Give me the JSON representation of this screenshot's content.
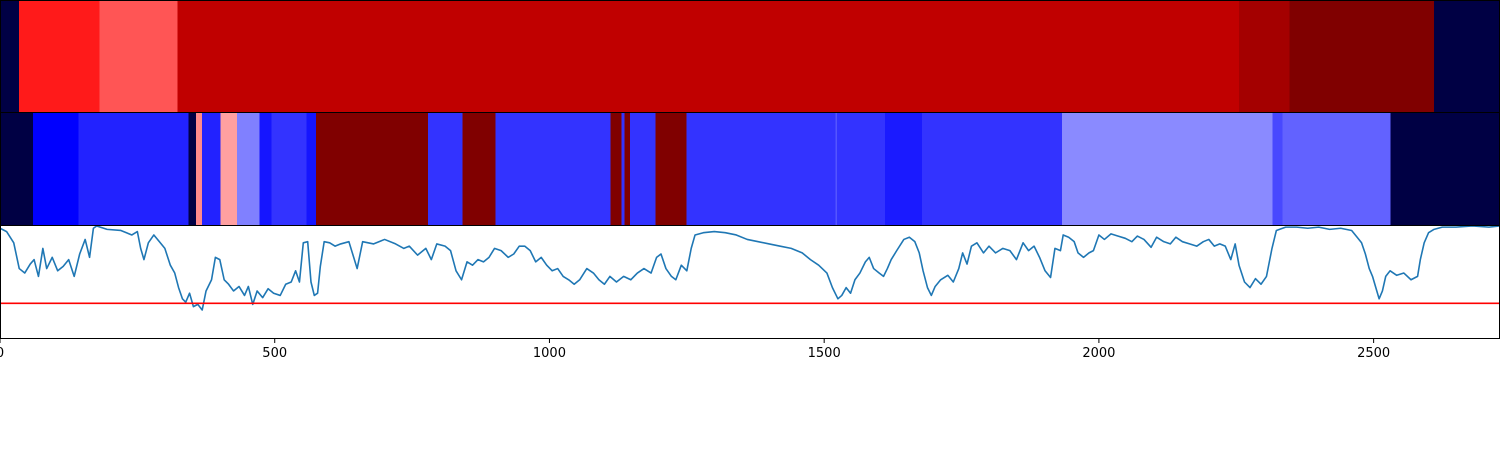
{
  "chart_data": {
    "type": "heatmap",
    "x_ticks": [
      0,
      500,
      1000,
      1500,
      2000,
      2500
    ],
    "xlim": [
      0,
      2730
    ],
    "rows": [
      {
        "segments": [
          {
            "start": 0,
            "end": 35,
            "color": "#000044"
          },
          {
            "start": 35,
            "end": 181,
            "color": "#ff1a1a"
          },
          {
            "start": 181,
            "end": 323,
            "color": "#ff5555"
          },
          {
            "start": 323,
            "end": 2255,
            "color": "#c00000"
          },
          {
            "start": 2255,
            "end": 2347,
            "color": "#a40000"
          },
          {
            "start": 2347,
            "end": 2610,
            "color": "#800000"
          },
          {
            "start": 2610,
            "end": 2730,
            "color": "#000044"
          }
        ]
      },
      {
        "segments": [
          {
            "start": 0,
            "end": 60,
            "color": "#000044"
          },
          {
            "start": 60,
            "end": 143,
            "color": "#0000ff"
          },
          {
            "start": 143,
            "end": 343,
            "color": "#2222ff"
          },
          {
            "start": 343,
            "end": 357,
            "color": "#000044"
          },
          {
            "start": 357,
            "end": 368,
            "color": "#ff8a8a"
          },
          {
            "start": 368,
            "end": 401,
            "color": "#2222ff"
          },
          {
            "start": 401,
            "end": 431,
            "color": "#ffa0a0"
          },
          {
            "start": 431,
            "end": 472,
            "color": "#8080ff"
          },
          {
            "start": 472,
            "end": 494,
            "color": "#1515ff"
          },
          {
            "start": 494,
            "end": 558,
            "color": "#3333ff"
          },
          {
            "start": 558,
            "end": 575,
            "color": "#1515ff"
          },
          {
            "start": 575,
            "end": 779,
            "color": "#800000"
          },
          {
            "start": 779,
            "end": 842,
            "color": "#3333ff"
          },
          {
            "start": 842,
            "end": 902,
            "color": "#800000"
          },
          {
            "start": 902,
            "end": 1111,
            "color": "#3333ff"
          },
          {
            "start": 1111,
            "end": 1131,
            "color": "#800000"
          },
          {
            "start": 1131,
            "end": 1137,
            "color": "#3333ff"
          },
          {
            "start": 1137,
            "end": 1147,
            "color": "#800000"
          },
          {
            "start": 1147,
            "end": 1193,
            "color": "#3333ff"
          },
          {
            "start": 1193,
            "end": 1249,
            "color": "#800000"
          },
          {
            "start": 1249,
            "end": 1521,
            "color": "#3333ff"
          },
          {
            "start": 1521,
            "end": 1523,
            "color": "#5555ff"
          },
          {
            "start": 1523,
            "end": 1611,
            "color": "#3333ff"
          },
          {
            "start": 1611,
            "end": 1678,
            "color": "#1a1aff"
          },
          {
            "start": 1678,
            "end": 1933,
            "color": "#3333ff"
          },
          {
            "start": 1933,
            "end": 2316,
            "color": "#8a8aff"
          },
          {
            "start": 2316,
            "end": 2334,
            "color": "#4848ff"
          },
          {
            "start": 2334,
            "end": 2531,
            "color": "#6262ff"
          },
          {
            "start": 2531,
            "end": 2730,
            "color": "#000044"
          }
        ]
      }
    ],
    "line": {
      "color": "#1f77b4",
      "ylim": [
        0,
        1
      ],
      "threshold": 0.31,
      "threshold_color": "#ff0000",
      "points": [
        [
          0,
          0.98
        ],
        [
          12,
          0.95
        ],
        [
          25,
          0.85
        ],
        [
          35,
          0.62
        ],
        [
          45,
          0.58
        ],
        [
          55,
          0.66
        ],
        [
          62,
          0.7
        ],
        [
          70,
          0.55
        ],
        [
          78,
          0.8
        ],
        [
          85,
          0.62
        ],
        [
          95,
          0.72
        ],
        [
          105,
          0.6
        ],
        [
          115,
          0.64
        ],
        [
          125,
          0.7
        ],
        [
          135,
          0.55
        ],
        [
          145,
          0.75
        ],
        [
          155,
          0.88
        ],
        [
          163,
          0.72
        ],
        [
          170,
          0.98
        ],
        [
          176,
          1.0
        ],
        [
          195,
          0.97
        ],
        [
          220,
          0.96
        ],
        [
          240,
          0.92
        ],
        [
          250,
          0.95
        ],
        [
          256,
          0.8
        ],
        [
          262,
          0.7
        ],
        [
          270,
          0.85
        ],
        [
          280,
          0.92
        ],
        [
          290,
          0.86
        ],
        [
          300,
          0.8
        ],
        [
          310,
          0.65
        ],
        [
          318,
          0.58
        ],
        [
          325,
          0.45
        ],
        [
          332,
          0.35
        ],
        [
          338,
          0.32
        ],
        [
          345,
          0.4
        ],
        [
          352,
          0.28
        ],
        [
          360,
          0.3
        ],
        [
          368,
          0.25
        ],
        [
          375,
          0.42
        ],
        [
          385,
          0.52
        ],
        [
          392,
          0.72
        ],
        [
          400,
          0.7
        ],
        [
          408,
          0.52
        ],
        [
          416,
          0.48
        ],
        [
          425,
          0.42
        ],
        [
          435,
          0.46
        ],
        [
          445,
          0.38
        ],
        [
          452,
          0.46
        ],
        [
          460,
          0.3
        ],
        [
          468,
          0.42
        ],
        [
          478,
          0.36
        ],
        [
          488,
          0.44
        ],
        [
          498,
          0.4
        ],
        [
          510,
          0.38
        ],
        [
          520,
          0.48
        ],
        [
          530,
          0.5
        ],
        [
          538,
          0.6
        ],
        [
          545,
          0.5
        ],
        [
          552,
          0.85
        ],
        [
          560,
          0.86
        ],
        [
          566,
          0.5
        ],
        [
          572,
          0.38
        ],
        [
          578,
          0.4
        ],
        [
          583,
          0.64
        ],
        [
          590,
          0.86
        ],
        [
          600,
          0.85
        ],
        [
          610,
          0.82
        ],
        [
          620,
          0.84
        ],
        [
          635,
          0.86
        ],
        [
          650,
          0.62
        ],
        [
          660,
          0.86
        ],
        [
          680,
          0.84
        ],
        [
          700,
          0.88
        ],
        [
          720,
          0.84
        ],
        [
          735,
          0.8
        ],
        [
          745,
          0.82
        ],
        [
          760,
          0.74
        ],
        [
          775,
          0.8
        ],
        [
          785,
          0.7
        ],
        [
          795,
          0.84
        ],
        [
          810,
          0.82
        ],
        [
          820,
          0.78
        ],
        [
          830,
          0.6
        ],
        [
          840,
          0.52
        ],
        [
          850,
          0.68
        ],
        [
          860,
          0.65
        ],
        [
          870,
          0.7
        ],
        [
          880,
          0.68
        ],
        [
          890,
          0.72
        ],
        [
          900,
          0.8
        ],
        [
          912,
          0.78
        ],
        [
          925,
          0.72
        ],
        [
          935,
          0.75
        ],
        [
          945,
          0.82
        ],
        [
          955,
          0.82
        ],
        [
          965,
          0.78
        ],
        [
          975,
          0.68
        ],
        [
          985,
          0.72
        ],
        [
          995,
          0.65
        ],
        [
          1005,
          0.6
        ],
        [
          1015,
          0.62
        ],
        [
          1025,
          0.55
        ],
        [
          1035,
          0.52
        ],
        [
          1045,
          0.48
        ],
        [
          1055,
          0.52
        ],
        [
          1068,
          0.62
        ],
        [
          1080,
          0.58
        ],
        [
          1090,
          0.52
        ],
        [
          1100,
          0.48
        ],
        [
          1110,
          0.55
        ],
        [
          1122,
          0.5
        ],
        [
          1135,
          0.55
        ],
        [
          1148,
          0.52
        ],
        [
          1160,
          0.58
        ],
        [
          1172,
          0.62
        ],
        [
          1185,
          0.58
        ],
        [
          1195,
          0.72
        ],
        [
          1203,
          0.75
        ],
        [
          1212,
          0.62
        ],
        [
          1222,
          0.55
        ],
        [
          1230,
          0.52
        ],
        [
          1240,
          0.65
        ],
        [
          1250,
          0.6
        ],
        [
          1258,
          0.8
        ],
        [
          1265,
          0.92
        ],
        [
          1280,
          0.94
        ],
        [
          1300,
          0.95
        ],
        [
          1320,
          0.94
        ],
        [
          1340,
          0.92
        ],
        [
          1360,
          0.88
        ],
        [
          1380,
          0.86
        ],
        [
          1400,
          0.84
        ],
        [
          1420,
          0.82
        ],
        [
          1440,
          0.8
        ],
        [
          1460,
          0.76
        ],
        [
          1475,
          0.7
        ],
        [
          1490,
          0.65
        ],
        [
          1505,
          0.58
        ],
        [
          1515,
          0.45
        ],
        [
          1525,
          0.35
        ],
        [
          1532,
          0.38
        ],
        [
          1540,
          0.45
        ],
        [
          1548,
          0.4
        ],
        [
          1556,
          0.52
        ],
        [
          1565,
          0.58
        ],
        [
          1575,
          0.68
        ],
        [
          1582,
          0.72
        ],
        [
          1590,
          0.62
        ],
        [
          1600,
          0.58
        ],
        [
          1608,
          0.55
        ],
        [
          1615,
          0.62
        ],
        [
          1622,
          0.7
        ],
        [
          1632,
          0.78
        ],
        [
          1645,
          0.88
        ],
        [
          1655,
          0.9
        ],
        [
          1665,
          0.86
        ],
        [
          1673,
          0.76
        ],
        [
          1680,
          0.6
        ],
        [
          1688,
          0.45
        ],
        [
          1695,
          0.38
        ],
        [
          1702,
          0.46
        ],
        [
          1712,
          0.52
        ],
        [
          1725,
          0.56
        ],
        [
          1735,
          0.5
        ],
        [
          1745,
          0.62
        ],
        [
          1752,
          0.76
        ],
        [
          1760,
          0.66
        ],
        [
          1768,
          0.82
        ],
        [
          1778,
          0.85
        ],
        [
          1790,
          0.76
        ],
        [
          1800,
          0.82
        ],
        [
          1812,
          0.76
        ],
        [
          1825,
          0.8
        ],
        [
          1838,
          0.78
        ],
        [
          1850,
          0.7
        ],
        [
          1862,
          0.85
        ],
        [
          1872,
          0.78
        ],
        [
          1882,
          0.82
        ],
        [
          1892,
          0.72
        ],
        [
          1902,
          0.6
        ],
        [
          1912,
          0.54
        ],
        [
          1920,
          0.8
        ],
        [
          1930,
          0.78
        ],
        [
          1935,
          0.92
        ],
        [
          1945,
          0.9
        ],
        [
          1955,
          0.86
        ],
        [
          1962,
          0.76
        ],
        [
          1972,
          0.72
        ],
        [
          1982,
          0.76
        ],
        [
          1990,
          0.78
        ],
        [
          2000,
          0.92
        ],
        [
          2010,
          0.88
        ],
        [
          2022,
          0.93
        ],
        [
          2035,
          0.91
        ],
        [
          2048,
          0.89
        ],
        [
          2060,
          0.86
        ],
        [
          2070,
          0.91
        ],
        [
          2082,
          0.88
        ],
        [
          2095,
          0.81
        ],
        [
          2105,
          0.9
        ],
        [
          2118,
          0.86
        ],
        [
          2130,
          0.84
        ],
        [
          2140,
          0.9
        ],
        [
          2152,
          0.86
        ],
        [
          2165,
          0.84
        ],
        [
          2178,
          0.82
        ],
        [
          2190,
          0.86
        ],
        [
          2200,
          0.88
        ],
        [
          2210,
          0.82
        ],
        [
          2220,
          0.84
        ],
        [
          2230,
          0.82
        ],
        [
          2240,
          0.7
        ],
        [
          2248,
          0.84
        ],
        [
          2255,
          0.65
        ],
        [
          2265,
          0.5
        ],
        [
          2275,
          0.45
        ],
        [
          2285,
          0.53
        ],
        [
          2295,
          0.48
        ],
        [
          2305,
          0.55
        ],
        [
          2315,
          0.8
        ],
        [
          2323,
          0.96
        ],
        [
          2340,
          0.99
        ],
        [
          2360,
          0.99
        ],
        [
          2380,
          0.98
        ],
        [
          2400,
          0.99
        ],
        [
          2420,
          0.97
        ],
        [
          2440,
          0.98
        ],
        [
          2460,
          0.96
        ],
        [
          2470,
          0.9
        ],
        [
          2478,
          0.85
        ],
        [
          2485,
          0.75
        ],
        [
          2492,
          0.62
        ],
        [
          2498,
          0.55
        ],
        [
          2504,
          0.45
        ],
        [
          2510,
          0.35
        ],
        [
          2516,
          0.42
        ],
        [
          2522,
          0.55
        ],
        [
          2530,
          0.6
        ],
        [
          2542,
          0.56
        ],
        [
          2555,
          0.58
        ],
        [
          2568,
          0.52
        ],
        [
          2580,
          0.55
        ],
        [
          2585,
          0.7
        ],
        [
          2592,
          0.85
        ],
        [
          2600,
          0.94
        ],
        [
          2610,
          0.97
        ],
        [
          2625,
          0.99
        ],
        [
          2650,
          0.99
        ],
        [
          2680,
          1.0
        ],
        [
          2710,
          0.99
        ],
        [
          2730,
          1.0
        ]
      ]
    }
  }
}
